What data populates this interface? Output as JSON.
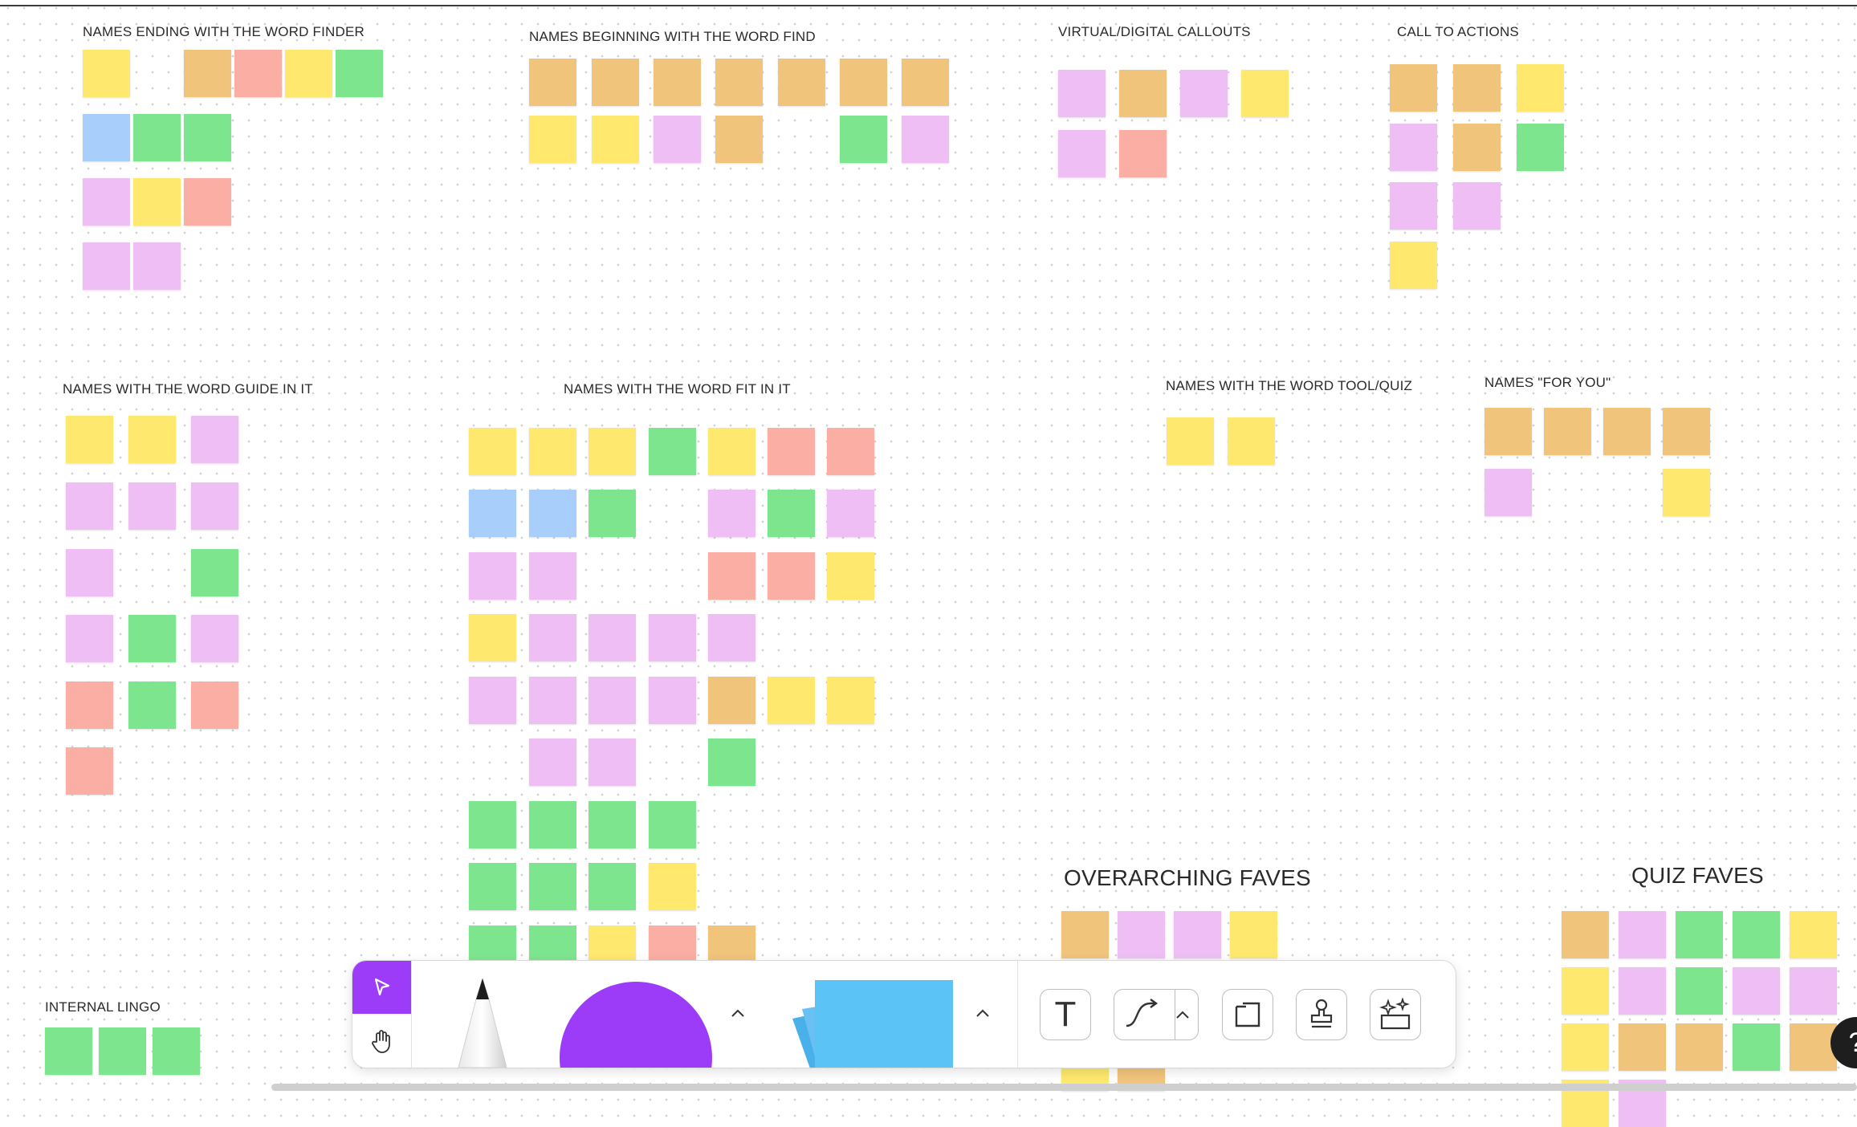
{
  "headings": {
    "finder": "NAMES ENDING WITH THE WORD FINDER",
    "find": "NAMES BEGINNING WITH THE WORD FIND",
    "callouts": "VIRTUAL/DIGITAL CALLOUTS",
    "cta": "CALL TO ACTIONS",
    "guide": "NAMES WITH THE WORD GUIDE IN IT",
    "fit": "NAMES WITH THE WORD FIT IN IT",
    "toolquiz": "NAMES WITH THE WORD TOOL/QUIZ",
    "foryou": "NAMES \"FOR YOU\"",
    "overarching": "OVERARCHING FAVES",
    "quizfaves": "QUIZ FAVES",
    "lingo": "INTERNAL LINGO"
  },
  "colors": {
    "yellow": "#fee86e",
    "orange": "#f1c47c",
    "salmon": "#fbaea3",
    "green": "#7ee58f",
    "blue": "#a8cffc",
    "pink": "#efbef5",
    "accent": "#9c3cf8",
    "sticky_tool": "#5cc3f7"
  },
  "icons": {
    "select": "cursor-arrow-icon",
    "hand": "hand-icon",
    "text": "text-tool-icon",
    "connector": "connector-icon",
    "frame": "frame-icon",
    "stamp": "stamp-icon",
    "ai": "ai-sparkle-icon",
    "help": "help-icon"
  },
  "toolbar": {
    "text_label": "T",
    "help_label": "?"
  }
}
